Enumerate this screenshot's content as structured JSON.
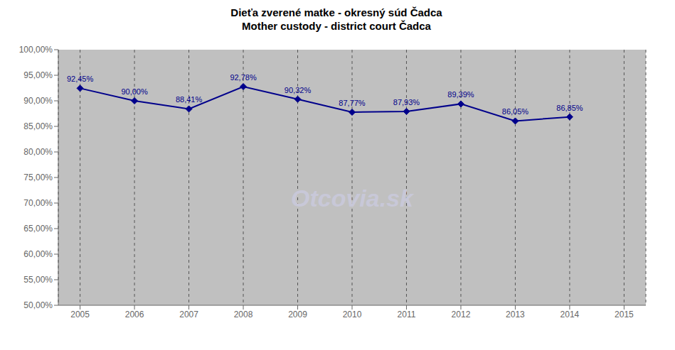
{
  "chart_data": {
    "type": "line",
    "title": "Dieťa zverené matke - okresný súd Čadca",
    "subtitle": "Mother custody - district court Čadca",
    "x": [
      2005,
      2006,
      2007,
      2008,
      2009,
      2010,
      2011,
      2012,
      2013,
      2014
    ],
    "values": [
      92.45,
      90.0,
      88.41,
      92.78,
      90.32,
      87.77,
      87.93,
      89.39,
      86.05,
      86.85
    ],
    "value_labels": [
      "92,45%",
      "90,00%",
      "88,41%",
      "92,78%",
      "90,32%",
      "87,77%",
      "87,93%",
      "89,39%",
      "86,05%",
      "86,85%"
    ],
    "data_labels": true,
    "color": "#00008B",
    "marker": "diamond",
    "xlim": [
      2004.6,
      2015.4
    ],
    "xticks": [
      2005,
      2006,
      2007,
      2008,
      2009,
      2010,
      2011,
      2012,
      2013,
      2014,
      2015
    ],
    "ylim": [
      50.0,
      100.0
    ],
    "yticks": [
      {
        "value": 50.0,
        "label": "50,00%"
      },
      {
        "value": 55.0,
        "label": "55,00%"
      },
      {
        "value": 60.0,
        "label": "60,00%"
      },
      {
        "value": 65.0,
        "label": "65,00%"
      },
      {
        "value": 70.0,
        "label": "70,00%"
      },
      {
        "value": 75.0,
        "label": "75,00%"
      },
      {
        "value": 80.0,
        "label": "80,00%"
      },
      {
        "value": 85.0,
        "label": "85,00%"
      },
      {
        "value": 90.0,
        "label": "90,00%"
      },
      {
        "value": 95.0,
        "label": "95,00%"
      },
      {
        "value": 100.0,
        "label": "100,00%"
      }
    ],
    "grid": "x",
    "annotations": [
      "Otcovia.sk"
    ]
  }
}
